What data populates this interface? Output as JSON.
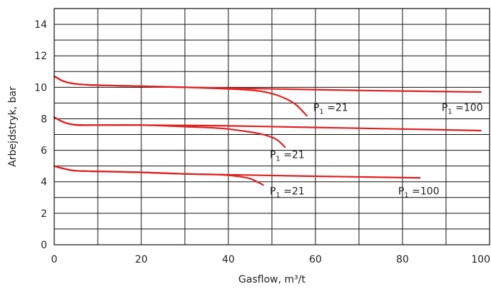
{
  "chart_data": {
    "type": "line",
    "title": "",
    "xlabel": "Gasflow, m³/t",
    "ylabel": "Arbejdstryk, bar",
    "xlim": [
      0,
      100
    ],
    "ylim": [
      0,
      15
    ],
    "x_ticks": [
      0,
      20,
      40,
      60,
      80,
      100
    ],
    "y_ticks": [
      0,
      2,
      4,
      6,
      8,
      10,
      12,
      14
    ],
    "grid": true,
    "series": [
      {
        "curve": "P1=100, 10 bar",
        "color": "#e02020",
        "points": [
          [
            0,
            10.7
          ],
          [
            2,
            10.4
          ],
          [
            4,
            10.25
          ],
          [
            8,
            10.15
          ],
          [
            15,
            10.1
          ],
          [
            30,
            10.0
          ],
          [
            50,
            9.9
          ],
          [
            70,
            9.8
          ],
          [
            98,
            9.7
          ]
        ]
      },
      {
        "curve": "P1=21, 10 bar",
        "color": "#e02020",
        "points": [
          [
            0,
            10.7
          ],
          [
            2,
            10.4
          ],
          [
            4,
            10.25
          ],
          [
            8,
            10.15
          ],
          [
            15,
            10.1
          ],
          [
            30,
            10.0
          ],
          [
            40,
            9.9
          ],
          [
            46,
            9.8
          ],
          [
            50,
            9.6
          ],
          [
            53,
            9.3
          ],
          [
            55.5,
            8.9
          ],
          [
            58,
            8.2
          ]
        ]
      },
      {
        "curve": "P1=100, 8 bar",
        "color": "#e02020",
        "points": [
          [
            0,
            8.1
          ],
          [
            2,
            7.8
          ],
          [
            4,
            7.65
          ],
          [
            8,
            7.6
          ],
          [
            20,
            7.6
          ],
          [
            40,
            7.55
          ],
          [
            60,
            7.45
          ],
          [
            80,
            7.35
          ],
          [
            98,
            7.25
          ]
        ]
      },
      {
        "curve": "P1=21, 8 bar",
        "color": "#e02020",
        "points": [
          [
            0,
            8.1
          ],
          [
            2,
            7.8
          ],
          [
            5,
            7.6
          ],
          [
            10,
            7.6
          ],
          [
            20,
            7.6
          ],
          [
            30,
            7.5
          ],
          [
            38,
            7.4
          ],
          [
            44,
            7.2
          ],
          [
            48,
            7.0
          ],
          [
            51,
            6.7
          ],
          [
            53,
            6.2
          ]
        ]
      },
      {
        "curve": "P1=100, 5 bar",
        "color": "#e02020",
        "points": [
          [
            0,
            5.0
          ],
          [
            2,
            4.85
          ],
          [
            5,
            4.7
          ],
          [
            12,
            4.65
          ],
          [
            20,
            4.6
          ],
          [
            30,
            4.5
          ],
          [
            40,
            4.45
          ],
          [
            60,
            4.35
          ],
          [
            84,
            4.25
          ]
        ]
      },
      {
        "curve": "P1=21, 5 bar",
        "color": "#e02020",
        "points": [
          [
            0,
            5.0
          ],
          [
            2,
            4.85
          ],
          [
            5,
            4.7
          ],
          [
            12,
            4.65
          ],
          [
            20,
            4.6
          ],
          [
            30,
            4.5
          ],
          [
            38,
            4.45
          ],
          [
            42,
            4.35
          ],
          [
            45,
            4.2
          ],
          [
            48,
            3.8
          ]
        ]
      }
    ],
    "annotations": [
      {
        "p": "P",
        "sub": "1",
        "value": " =21",
        "x": 59.5,
        "y": 8.5
      },
      {
        "p": "P",
        "sub": "1",
        "value": " =100",
        "x": 89,
        "y": 8.5
      },
      {
        "p": "P",
        "sub": "1",
        "value": " =21",
        "x": 49.5,
        "y": 5.5
      },
      {
        "p": "P",
        "sub": "1",
        "value": " =21",
        "x": 49.5,
        "y": 3.2
      },
      {
        "p": "P",
        "sub": "1",
        "value": " =100",
        "x": 79,
        "y": 3.2
      }
    ]
  }
}
